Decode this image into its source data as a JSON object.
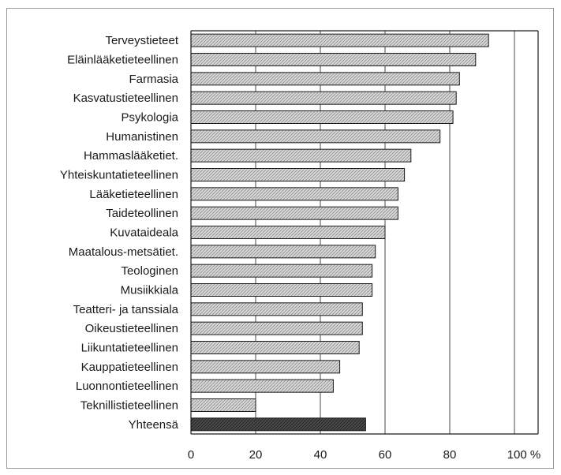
{
  "chart_data": {
    "type": "bar",
    "orientation": "horizontal",
    "categories": [
      "Terveystieteet",
      "Eläinlääketieteellinen",
      "Farmasia",
      "Kasvatustieteellinen",
      "Psykologia",
      "Humanistinen",
      "Hammaslääketiet.",
      "Yhteiskuntatieteellinen",
      "Lääketieteellinen",
      "Taideteollinen",
      "Kuvataideala",
      "Maatalous-metsätiet.",
      "Teologinen",
      "Musiikkiala",
      "Teatteri- ja tanssiala",
      "Oikeustieteellinen",
      "Liikuntatieteellinen",
      "Kauppatieteellinen",
      "Luonnontieteellinen",
      "Teknillistieteellinen",
      "Yhteensä"
    ],
    "values": [
      92,
      88,
      83,
      82,
      81,
      77,
      68,
      66,
      64,
      64,
      60,
      57,
      56,
      56,
      53,
      53,
      52,
      46,
      44,
      20,
      54
    ],
    "highlight_index": 20,
    "xlim": [
      0,
      100
    ],
    "xticks": [
      "0",
      "20",
      "40",
      "60",
      "80",
      "100 %"
    ],
    "xlabel": "",
    "ylabel": "",
    "title": "",
    "grid": "vertical",
    "legend": "none",
    "colors": {
      "bar_fill": "#d6d6d6",
      "bar_edge": "#1a1a1a",
      "highlight_fill": "#4a4a4a",
      "grid": "#1a1a1a",
      "frame": "#9a9a9a"
    }
  }
}
